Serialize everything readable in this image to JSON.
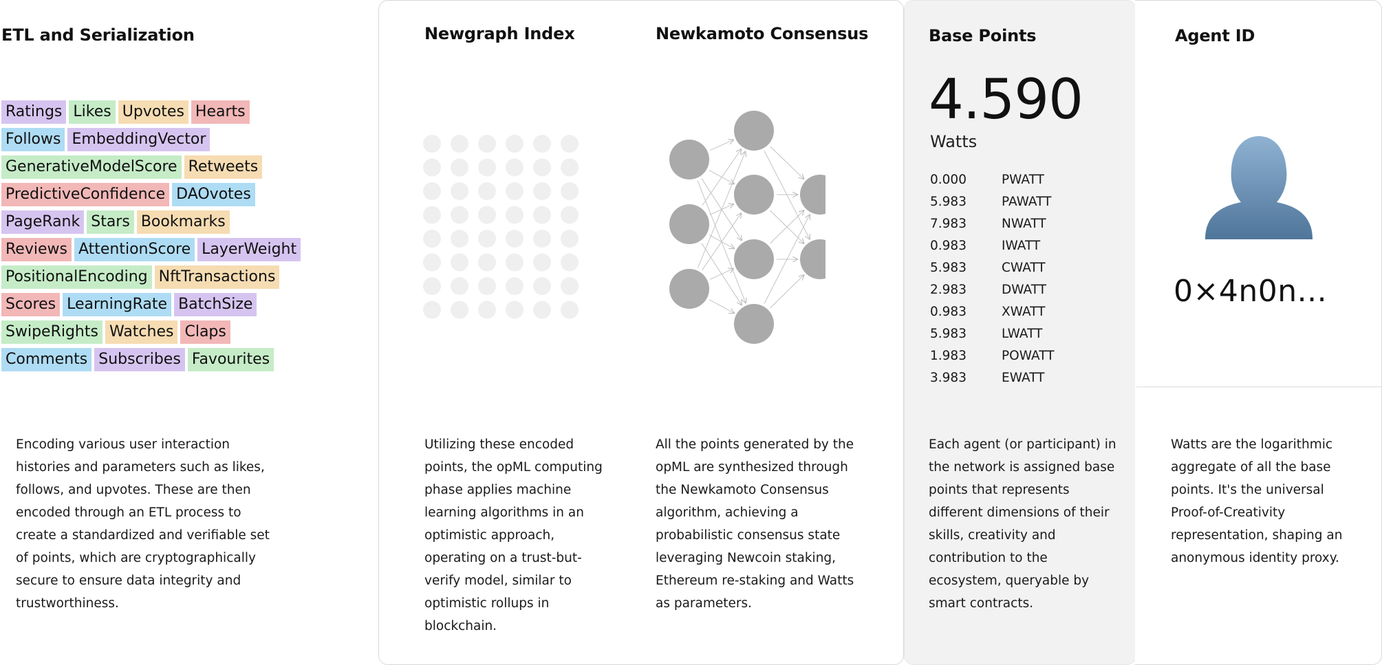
{
  "columns": {
    "etl": {
      "title": "ETL and Serialization",
      "description": "Encoding various user interaction histories and parameters such as likes, follows, and upvotes. These are then encoded through an ETL process to create a standardized and verifiable set of points, which are cryptographically secure to ensure data integrity and trustworthiness."
    },
    "newgraph": {
      "title": "Newgraph Index",
      "description": "Utilizing these encoded points, the opML computing phase applies machine learning algorithms in an optimistic approach, operating on a trust-but-verify model, similar to optimistic rollups in blockchain."
    },
    "newkamoto": {
      "title": "Newkamoto Consensus",
      "description": "All the points generated by the opML are synthesized through the Newkamoto Consensus algorithm, achieving a probabilistic consensus state leveraging Newcoin staking, Ethereum re-staking and Watts as parameters."
    },
    "base_points": {
      "title": "Base Points",
      "value": "4.590",
      "unit": "Watts",
      "description": "Each agent (or participant) in the network is assigned base points that represents different dimensions of their skills, creativity and contribution to the ecosystem, queryable by smart contracts."
    },
    "agent": {
      "title": "Agent ID",
      "id": "0×4n0n...",
      "description": "Watts are the logarithmic aggregate of all the base points. It's the universal Proof-of-Creativity representation, shaping an anonymous identity proxy."
    }
  },
  "colors": {
    "purple": "#d6c4f0",
    "green": "#c5ecc7",
    "orange": "#f6dcb2",
    "red": "#f2b7b7",
    "blue": "#aedcf4",
    "node": "#aaaaaa",
    "dot": "#efefef"
  },
  "tag_rows": [
    [
      {
        "label": "Ratings",
        "color": "purple"
      },
      {
        "label": "Likes",
        "color": "green"
      },
      {
        "label": "Upvotes",
        "color": "orange"
      },
      {
        "label": "Hearts",
        "color": "red"
      }
    ],
    [
      {
        "label": "Follows",
        "color": "blue"
      },
      {
        "label": "EmbeddingVector",
        "color": "purple"
      }
    ],
    [
      {
        "label": "GenerativeModelScore",
        "color": "green"
      },
      {
        "label": "Retweets",
        "color": "orange"
      }
    ],
    [
      {
        "label": "PredictiveConfidence",
        "color": "red"
      },
      {
        "label": "DAOvotes",
        "color": "blue"
      }
    ],
    [
      {
        "label": "PageRank",
        "color": "purple"
      },
      {
        "label": "Stars",
        "color": "green"
      },
      {
        "label": "Bookmarks",
        "color": "orange"
      }
    ],
    [
      {
        "label": "Reviews",
        "color": "red"
      },
      {
        "label": "AttentionScore",
        "color": "blue"
      },
      {
        "label": "LayerWeight",
        "color": "purple"
      }
    ],
    [
      {
        "label": "PositionalEncoding",
        "color": "green"
      },
      {
        "label": "NftTransactions",
        "color": "orange"
      }
    ],
    [
      {
        "label": "Scores",
        "color": "red"
      },
      {
        "label": "LearningRate",
        "color": "blue"
      },
      {
        "label": "BatchSize",
        "color": "purple"
      }
    ],
    [
      {
        "label": "SwipeRights",
        "color": "green"
      },
      {
        "label": "Watches",
        "color": "orange"
      },
      {
        "label": "Claps",
        "color": "red"
      }
    ],
    [
      {
        "label": "Comments",
        "color": "blue"
      },
      {
        "label": "Subscribes",
        "color": "purple"
      },
      {
        "label": "Favourites",
        "color": "green"
      }
    ]
  ],
  "points": [
    {
      "value": "0.000",
      "name": "PWATT"
    },
    {
      "value": "5.983",
      "name": "PAWATT"
    },
    {
      "value": "7.983",
      "name": "NWATT"
    },
    {
      "value": "0.983",
      "name": "IWATT"
    },
    {
      "value": "5.983",
      "name": "CWATT"
    },
    {
      "value": "2.983",
      "name": "DWATT"
    },
    {
      "value": "0.983",
      "name": "XWATT"
    },
    {
      "value": "5.983",
      "name": "LWATT"
    },
    {
      "value": "1.983",
      "name": "POWATT"
    },
    {
      "value": "3.983",
      "name": "EWATT"
    }
  ],
  "dot_grid": {
    "rows": 8,
    "cols": 6
  },
  "network": {
    "layers": [
      3,
      4,
      2
    ]
  }
}
